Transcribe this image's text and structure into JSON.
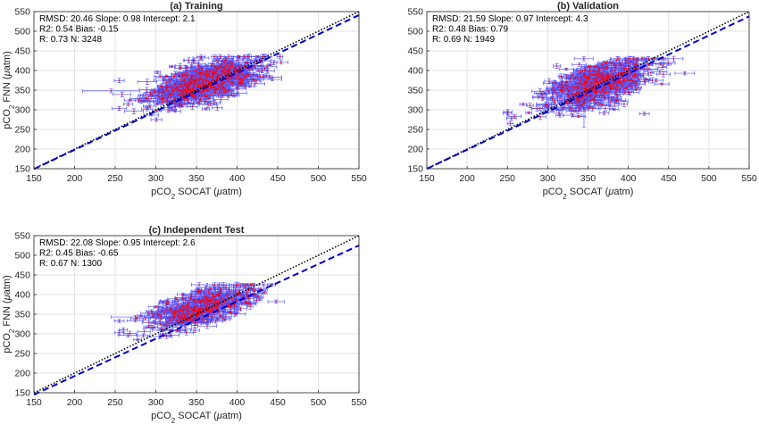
{
  "figure": {
    "colors": {
      "errorbar": "#5555ff",
      "points": "#ff0000",
      "fit_line": "#0000cc",
      "one_to_one": "#000000",
      "grid": "#e3e3e3",
      "axis": "#262626"
    }
  },
  "chart_data": [
    {
      "type": "scatter",
      "title": "(a) Training",
      "xlabel": "pCO2 SOCAT (μatm)",
      "ylabel": "pCO2 FNN (μatm)",
      "xlim": [
        150,
        550
      ],
      "ylim": [
        150,
        550
      ],
      "xticks": [
        "150",
        "200",
        "250",
        "300",
        "350",
        "400",
        "450",
        "500",
        "550"
      ],
      "yticks": [
        "150",
        "200",
        "250",
        "300",
        "350",
        "400",
        "450",
        "500",
        "550"
      ],
      "grid": true,
      "stats": [
        "RMSD: 20.46  Slope: 0.98  Intercept: 2.1",
        "R2: 0.54  Bias: -0.15",
        "R: 0.73  N: 3248"
      ],
      "one_to_one": {
        "slope": 1,
        "intercept": 0
      },
      "fit": {
        "slope": 0.98,
        "intercept": 2.1
      },
      "cloud": {
        "x_center": 360,
        "y_center": 370,
        "x_spread": 34,
        "y_spread": 24,
        "x_range": [
          255,
          455
        ],
        "y_range": [
          275,
          435
        ],
        "n_drawn": 800
      },
      "highlights": [
        {
          "x": 245,
          "y": 348,
          "xerr": 35,
          "yerr": 5
        },
        {
          "x": 440,
          "y": 383,
          "xerr": 15,
          "yerr": 4
        },
        {
          "x": 315,
          "y": 300,
          "xerr": 10,
          "yerr": 6
        },
        {
          "x": 430,
          "y": 425,
          "xerr": 12,
          "yerr": 5
        }
      ]
    },
    {
      "type": "scatter",
      "title": "(b) Validation",
      "xlabel": "pCO2 SOCAT (μatm)",
      "ylabel": "",
      "xlim": [
        150,
        550
      ],
      "ylim": [
        150,
        550
      ],
      "xticks": [
        "150",
        "200",
        "250",
        "300",
        "350",
        "400",
        "450",
        "500",
        "550"
      ],
      "yticks": [
        "150",
        "200",
        "250",
        "300",
        "350",
        "400",
        "450",
        "500",
        "550"
      ],
      "grid": true,
      "stats": [
        "RMSD: 21.59  Slope: 0.97  Intercept: 4.3",
        "R2: 0.48  Bias: 0.79",
        "R: 0.69  N: 1949"
      ],
      "one_to_one": {
        "slope": 1,
        "intercept": 0
      },
      "fit": {
        "slope": 0.97,
        "intercept": 4.3
      },
      "cloud": {
        "x_center": 360,
        "y_center": 365,
        "x_spread": 33,
        "y_spread": 26,
        "x_range": [
          250,
          480
        ],
        "y_range": [
          265,
          430
        ],
        "n_drawn": 650
      },
      "highlights": [
        {
          "x": 345,
          "y": 300,
          "xerr": 5,
          "yerr": 45
        },
        {
          "x": 470,
          "y": 393,
          "xerr": 12,
          "yerr": 4
        },
        {
          "x": 255,
          "y": 278,
          "xerr": 6,
          "yerr": 4
        },
        {
          "x": 420,
          "y": 290,
          "xerr": 6,
          "yerr": 4
        },
        {
          "x": 370,
          "y": 292,
          "xerr": 6,
          "yerr": 5
        }
      ]
    },
    {
      "type": "scatter",
      "title": "(c) Independent Test",
      "xlabel": "pCO2 SOCAT (μatm)",
      "ylabel": "pCO2 FNN (μatm)",
      "xlim": [
        150,
        550
      ],
      "ylim": [
        150,
        550
      ],
      "xticks": [
        "150",
        "200",
        "250",
        "300",
        "350",
        "400",
        "450",
        "500",
        "550"
      ],
      "yticks": [
        "150",
        "200",
        "250",
        "300",
        "350",
        "400",
        "450",
        "500",
        "550"
      ],
      "grid": true,
      "stats": [
        "RMSD: 22.08  Slope: 0.95  Intercept: 2.6",
        "R2: 0.45  Bias: -0.65",
        "R: 0.67  N: 1300"
      ],
      "one_to_one": {
        "slope": 1,
        "intercept": 0
      },
      "fit": {
        "slope": 0.95,
        "intercept": 2.6
      },
      "cloud": {
        "x_center": 355,
        "y_center": 365,
        "x_spread": 33,
        "y_spread": 22,
        "x_range": [
          255,
          465
        ],
        "y_range": [
          285,
          425
        ],
        "n_drawn": 550
      },
      "highlights": [
        {
          "x": 255,
          "y": 333,
          "xerr": 6,
          "yerr": 4
        },
        {
          "x": 275,
          "y": 343,
          "xerr": 30,
          "yerr": 4
        },
        {
          "x": 305,
          "y": 293,
          "xerr": 15,
          "yerr": 5
        },
        {
          "x": 448,
          "y": 382,
          "xerr": 10,
          "yerr": 4
        },
        {
          "x": 260,
          "y": 310,
          "xerr": 5,
          "yerr": 5
        }
      ]
    }
  ]
}
